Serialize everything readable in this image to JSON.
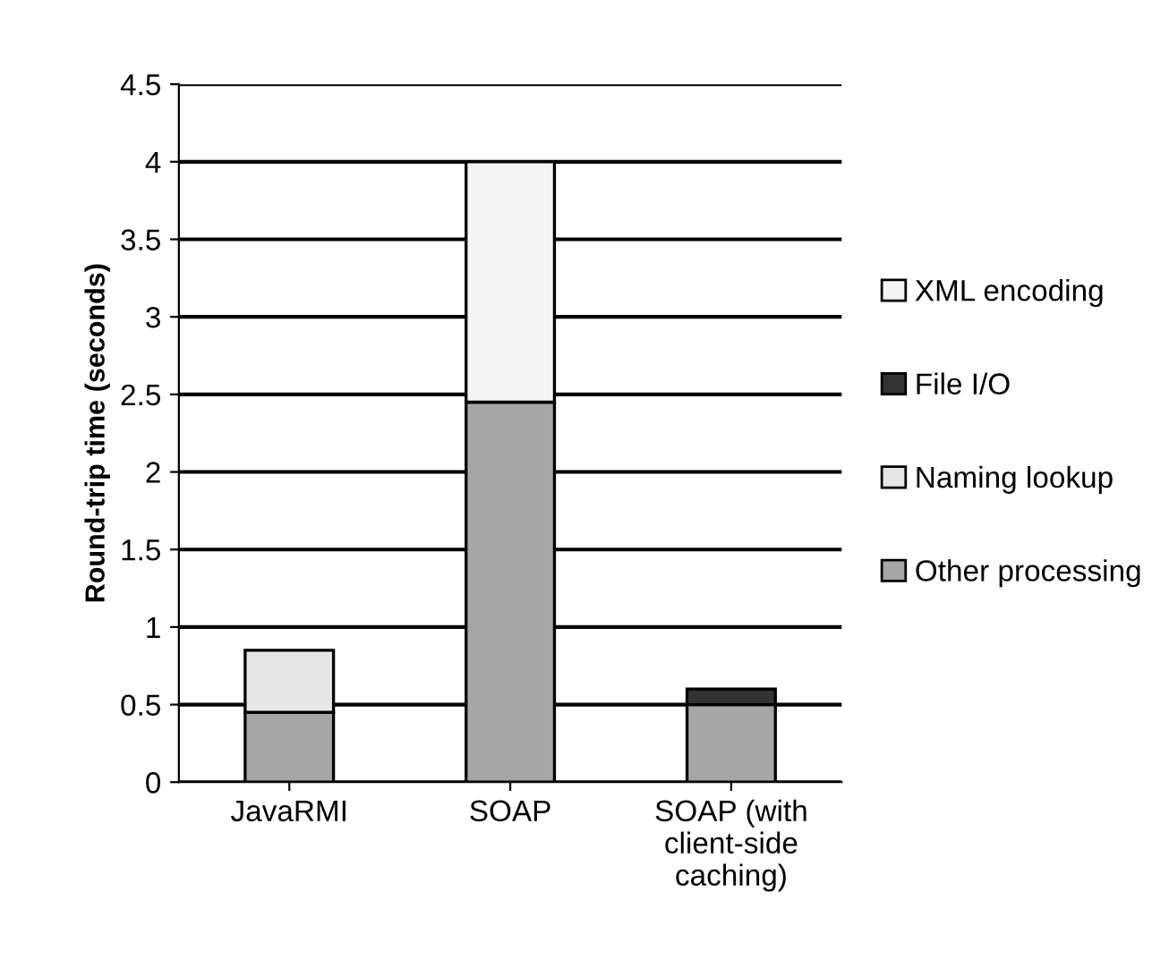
{
  "chart_data": {
    "type": "bar",
    "stacked": true,
    "ylabel": "Round-trip time (seconds)",
    "categories": [
      "JavaRMI",
      "SOAP",
      "SOAP (with\nclient-side\ncaching)"
    ],
    "series": [
      {
        "name": "Other processing",
        "color": "#a6a6a6",
        "values": [
          0.45,
          2.45,
          0.5
        ]
      },
      {
        "name": "Naming lookup",
        "color": "#e6e6e6",
        "values": [
          0.4,
          null,
          null
        ]
      },
      {
        "name": "File I/O",
        "color": "#333333",
        "values": [
          null,
          null,
          0.1
        ]
      },
      {
        "name": "XML encoding",
        "color": "#f4f4f4",
        "values": [
          null,
          1.55,
          null
        ]
      }
    ],
    "ylim": [
      0,
      4.5
    ],
    "yticks": [
      0,
      0.5,
      1,
      1.5,
      2,
      2.5,
      3,
      3.5,
      4,
      4.5
    ],
    "grid": "y",
    "legend": "right"
  }
}
